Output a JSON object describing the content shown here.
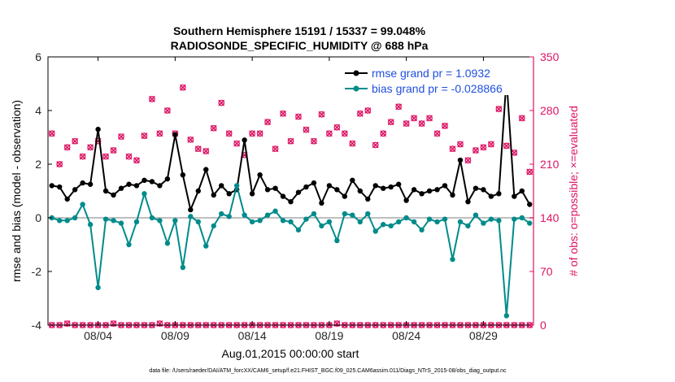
{
  "chart_data": {
    "type": "line",
    "title": "Southern Hemisphere 15191 / 15337 = 99.048%",
    "subtitle": "RADIOSONDE_SPECIFIC_HUMIDITY @ 688 hPa",
    "xlabel": "Aug.01,2015 00:00:00 start",
    "ylabel_left": "rmse and bias (model - observation)",
    "ylabel_right": "# of obs: o=possible; ×=evaluated",
    "footer": "data file: /Users/raeder/DAI/ATM_forcXX/CAM6_setup/f.e21.FHIST_BGC.f09_025.CAM6assim.011/Diags_NTrS_2015-08/obs_diag_output.nc",
    "xlim": [
      0.75,
      32.25
    ],
    "ylim_left": [
      -4,
      6
    ],
    "ylim_right": [
      0,
      350
    ],
    "xtick_values": [
      4,
      9,
      14,
      19,
      24,
      29
    ],
    "xtick_labels": [
      "08/04",
      "08/09",
      "08/14",
      "08/19",
      "08/24",
      "08/29"
    ],
    "ytick_left": [
      "-4",
      "-2",
      "0",
      "2",
      "4",
      "6"
    ],
    "ytick_left_values": [
      -4,
      -2,
      0,
      2,
      4,
      6
    ],
    "ytick_right": [
      "0",
      "70",
      "140",
      "210",
      "280",
      "350"
    ],
    "ytick_right_values": [
      0,
      70,
      140,
      210,
      280,
      350
    ],
    "grid": false,
    "legend_position": "top-right",
    "x": [
      1.0,
      1.5,
      2.0,
      2.5,
      3.0,
      3.5,
      4.0,
      4.5,
      5.0,
      5.5,
      6.0,
      6.5,
      7.0,
      7.5,
      8.0,
      8.5,
      9.0,
      9.5,
      10.0,
      10.5,
      11.0,
      11.5,
      12.0,
      12.5,
      13.0,
      13.5,
      14.0,
      14.5,
      15.0,
      15.5,
      16.0,
      16.5,
      17.0,
      17.5,
      18.0,
      18.5,
      19.0,
      19.5,
      20.0,
      20.5,
      21.0,
      21.5,
      22.0,
      22.5,
      23.0,
      23.5,
      24.0,
      24.5,
      25.0,
      25.5,
      26.0,
      26.5,
      27.0,
      27.5,
      28.0,
      28.5,
      29.0,
      29.5,
      30.0,
      30.5,
      31.0,
      31.5,
      32.0
    ],
    "series": [
      {
        "name": "rmse grand pr = 1.0932",
        "color": "#000000",
        "axis": "left",
        "values": [
          1.2,
          1.15,
          0.7,
          1.05,
          1.3,
          1.25,
          3.3,
          1.0,
          0.85,
          1.1,
          1.25,
          1.2,
          1.4,
          1.35,
          1.2,
          1.45,
          3.1,
          1.6,
          0.3,
          1.0,
          1.8,
          0.85,
          1.2,
          0.9,
          1.05,
          2.9,
          0.9,
          1.6,
          1.05,
          1.1,
          0.8,
          0.6,
          0.95,
          1.15,
          1.3,
          0.55,
          1.2,
          1.05,
          0.8,
          1.4,
          1.0,
          0.7,
          1.2,
          1.1,
          1.15,
          1.25,
          0.65,
          1.05,
          0.9,
          1.0,
          1.05,
          1.2,
          0.85,
          2.15,
          0.6,
          1.1,
          1.05,
          0.8,
          0.9,
          5.2,
          0.8,
          1.0,
          0.5
        ]
      },
      {
        "name": "bias grand pr = -0.028866",
        "color": "#008b8b",
        "axis": "left",
        "values": [
          0.0,
          -0.1,
          -0.1,
          0.0,
          0.5,
          -0.25,
          -2.6,
          -0.05,
          -0.1,
          -0.2,
          -1.0,
          -0.15,
          0.9,
          0.0,
          -0.1,
          -0.95,
          -0.1,
          -1.85,
          0.05,
          -0.15,
          -1.05,
          -0.3,
          0.15,
          0.05,
          1.2,
          0.1,
          -0.15,
          -0.1,
          0.1,
          0.25,
          -0.1,
          -0.15,
          -0.45,
          -0.05,
          0.15,
          -0.3,
          -0.15,
          -0.85,
          0.15,
          0.1,
          -0.15,
          0.15,
          -0.5,
          -0.25,
          -0.3,
          -0.15,
          0.0,
          -0.15,
          -0.45,
          -0.05,
          -0.15,
          -0.05,
          -1.55,
          -0.15,
          -0.3,
          0.1,
          -0.2,
          -0.05,
          -0.1,
          -3.65,
          -0.05,
          0.0,
          -0.2
        ]
      },
      {
        "name": "possible",
        "color": "#dc1464",
        "axis": "right",
        "marker": "circle",
        "values": [
          250,
          210,
          232,
          240,
          220,
          232,
          240,
          220,
          228,
          246,
          220,
          215,
          247,
          295,
          250,
          280,
          250,
          310,
          242,
          230,
          227,
          257,
          290,
          250,
          237,
          222,
          250,
          250,
          265,
          230,
          276,
          240,
          272,
          255,
          240,
          275,
          250,
          258,
          250,
          237,
          276,
          280,
          235,
          250,
          265,
          285,
          263,
          270,
          263,
          270,
          250,
          260,
          230,
          236,
          215,
          228,
          232,
          236,
          282,
          234,
          225,
          270,
          200
        ]
      },
      {
        "name": "evaluated",
        "color": "#dc1464",
        "axis": "right",
        "marker": "x",
        "values": [
          250,
          210,
          232,
          240,
          220,
          232,
          240,
          220,
          228,
          246,
          220,
          215,
          247,
          295,
          250,
          280,
          250,
          310,
          242,
          230,
          227,
          257,
          290,
          250,
          237,
          222,
          250,
          250,
          265,
          230,
          276,
          240,
          272,
          255,
          240,
          275,
          250,
          258,
          250,
          237,
          276,
          280,
          235,
          250,
          265,
          285,
          263,
          270,
          263,
          270,
          250,
          260,
          230,
          236,
          215,
          228,
          232,
          236,
          282,
          234,
          225,
          270,
          200
        ]
      },
      {
        "name": "possible-low",
        "color": "#dc1464",
        "axis": "right",
        "marker": "circle",
        "values": [
          0,
          0,
          2,
          0,
          0,
          0,
          0,
          0,
          2,
          0,
          0,
          0,
          0,
          0,
          2,
          0,
          0,
          0,
          0,
          0,
          0,
          0,
          0,
          0,
          0,
          0,
          0,
          0,
          0,
          0,
          0,
          0,
          0,
          0,
          0,
          0,
          0,
          2,
          0,
          0,
          0,
          0,
          0,
          0,
          0,
          0,
          0,
          0,
          0,
          0,
          0,
          0,
          0,
          0,
          0,
          0,
          0,
          0,
          0,
          0,
          0,
          0,
          0
        ]
      },
      {
        "name": "evaluated-low",
        "color": "#dc1464",
        "axis": "right",
        "marker": "x",
        "values": [
          0,
          0,
          2,
          0,
          0,
          0,
          0,
          0,
          2,
          0,
          0,
          0,
          0,
          0,
          2,
          0,
          0,
          0,
          0,
          0,
          0,
          0,
          0,
          0,
          0,
          0,
          0,
          0,
          0,
          0,
          0,
          0,
          0,
          0,
          0,
          0,
          0,
          2,
          0,
          0,
          0,
          0,
          0,
          0,
          0,
          0,
          0,
          0,
          0,
          0,
          0,
          0,
          0,
          0,
          0,
          0,
          0,
          0,
          0,
          0,
          0,
          0,
          0
        ]
      }
    ]
  }
}
